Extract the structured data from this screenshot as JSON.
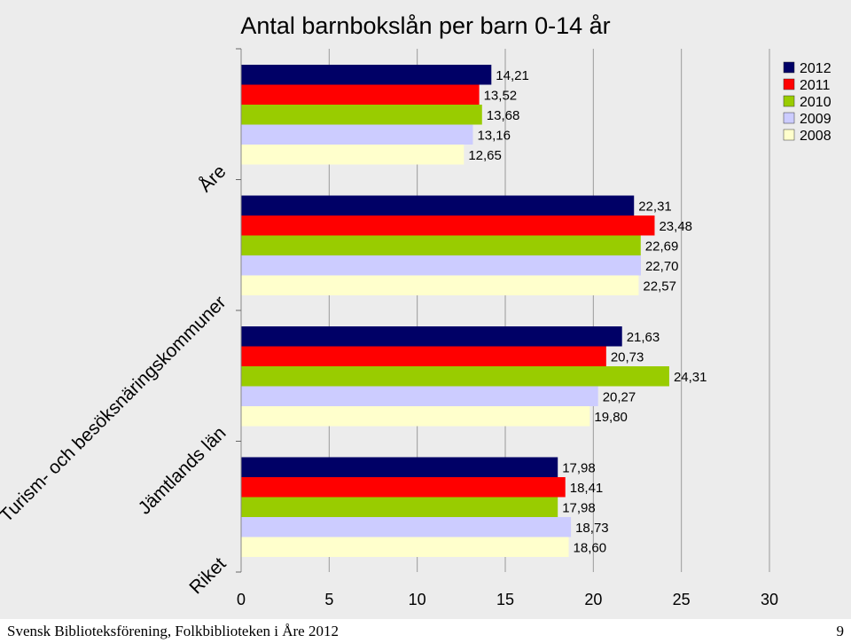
{
  "chart_data": {
    "type": "bar",
    "orientation": "horizontal",
    "title": "Antal barnbokslån per barn 0-14 år",
    "categories": [
      "Åre",
      "Turism- och besöksnäringskommuner",
      "Jämtlands län",
      "Riket"
    ],
    "series": [
      {
        "name": "2012",
        "color": "#000066",
        "values": [
          14.21,
          22.31,
          21.63,
          17.98
        ],
        "labels": [
          "14,21",
          "22,31",
          "21,63",
          "17,98"
        ]
      },
      {
        "name": "2011",
        "color": "#ff0000",
        "values": [
          13.52,
          23.48,
          20.73,
          18.41
        ],
        "labels": [
          "13,52",
          "23,48",
          "20,73",
          "18,41"
        ]
      },
      {
        "name": "2010",
        "color": "#99cc00",
        "values": [
          13.68,
          22.69,
          24.31,
          17.98
        ],
        "labels": [
          "13,68",
          "22,69",
          "24,31",
          "17,98"
        ]
      },
      {
        "name": "2009",
        "color": "#ccccff",
        "values": [
          13.16,
          22.7,
          20.27,
          18.73
        ],
        "labels": [
          "13,16",
          "22,70",
          "20,27",
          "18,73"
        ]
      },
      {
        "name": "2008",
        "color": "#ffffcc",
        "values": [
          12.65,
          22.57,
          19.8,
          18.6
        ],
        "labels": [
          "12,65",
          "22,57",
          "19,80",
          "18,60"
        ]
      }
    ],
    "xlim": [
      0,
      30
    ],
    "xticks": [
      0,
      5,
      10,
      15,
      20,
      25,
      30
    ],
    "grid": "vertical",
    "legend_position": "top-right"
  },
  "footer": {
    "source": "Svensk Biblioteksförening, Folkbiblioteken i Åre 2012",
    "page_number": "9"
  }
}
